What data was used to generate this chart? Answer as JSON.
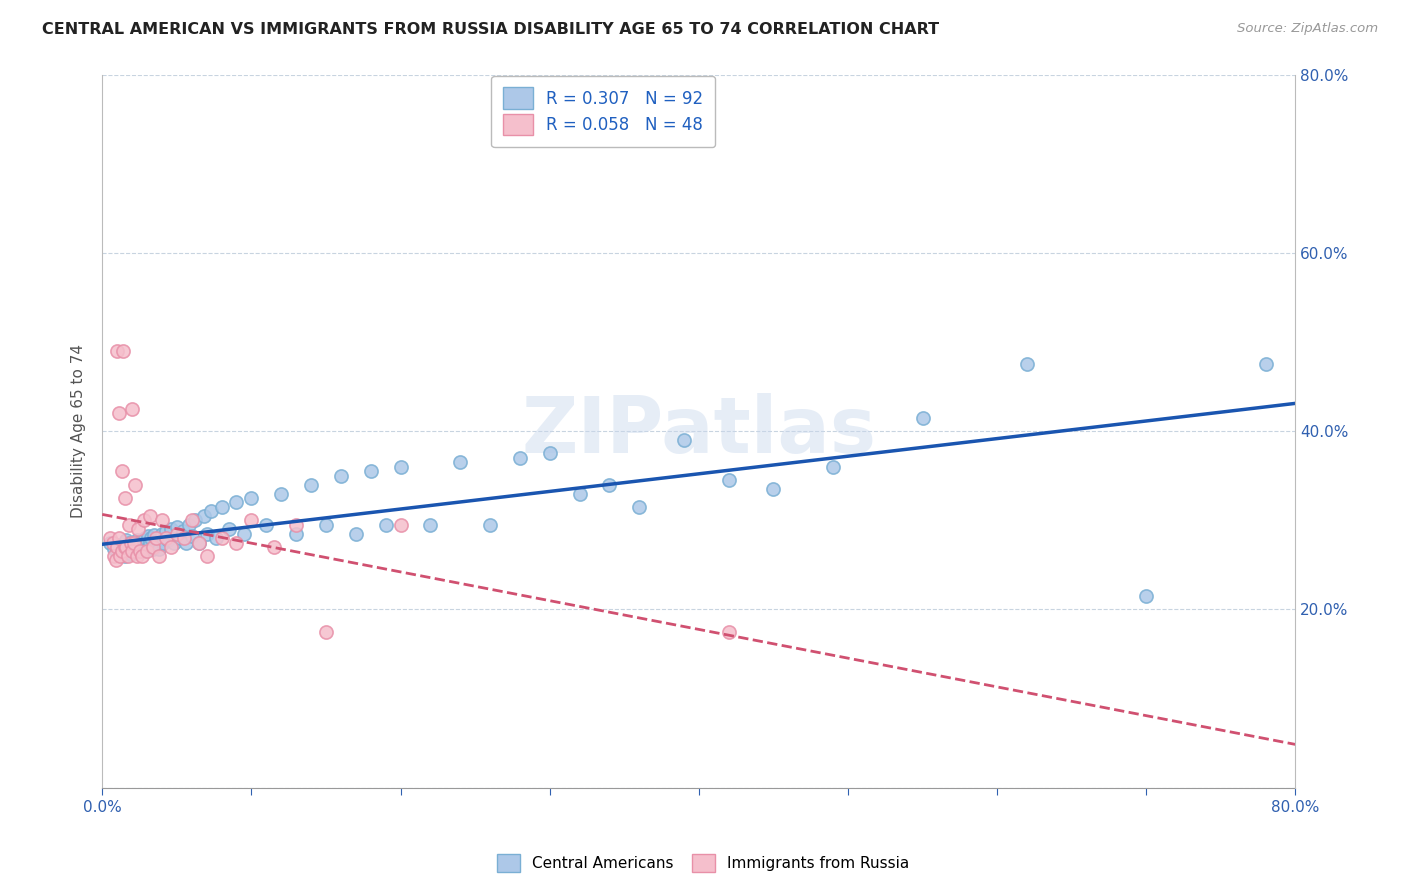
{
  "title": "CENTRAL AMERICAN VS IMMIGRANTS FROM RUSSIA DISABILITY AGE 65 TO 74 CORRELATION CHART",
  "source": "Source: ZipAtlas.com",
  "ylabel": "Disability Age 65 to 74",
  "xmin": 0.0,
  "xmax": 0.8,
  "ymin": 0.0,
  "ymax": 0.8,
  "blue_R": 0.307,
  "blue_N": 92,
  "pink_R": 0.058,
  "pink_N": 48,
  "blue_color": "#adc8e8",
  "blue_edge": "#7aafd4",
  "pink_color": "#f5bfcc",
  "pink_edge": "#e890a8",
  "blue_line_color": "#1a55b0",
  "pink_line_color": "#d05070",
  "watermark_text": "ZIPatlas",
  "legend_blue_label": "Central Americans",
  "legend_pink_label": "Immigrants from Russia",
  "blue_x": [
    0.005,
    0.008,
    0.01,
    0.01,
    0.012,
    0.013,
    0.015,
    0.015,
    0.016,
    0.017,
    0.018,
    0.018,
    0.019,
    0.019,
    0.02,
    0.02,
    0.02,
    0.021,
    0.021,
    0.022,
    0.022,
    0.023,
    0.023,
    0.024,
    0.025,
    0.025,
    0.026,
    0.027,
    0.027,
    0.028,
    0.028,
    0.029,
    0.029,
    0.03,
    0.03,
    0.031,
    0.032,
    0.033,
    0.034,
    0.035,
    0.036,
    0.037,
    0.038,
    0.04,
    0.041,
    0.043,
    0.044,
    0.046,
    0.048,
    0.05,
    0.052,
    0.054,
    0.056,
    0.058,
    0.06,
    0.062,
    0.065,
    0.068,
    0.07,
    0.073,
    0.076,
    0.08,
    0.085,
    0.09,
    0.095,
    0.1,
    0.11,
    0.12,
    0.13,
    0.14,
    0.15,
    0.16,
    0.17,
    0.18,
    0.19,
    0.2,
    0.22,
    0.24,
    0.26,
    0.28,
    0.3,
    0.32,
    0.34,
    0.36,
    0.39,
    0.42,
    0.45,
    0.49,
    0.55,
    0.62,
    0.7,
    0.78
  ],
  "blue_y": [
    0.275,
    0.268,
    0.265,
    0.272,
    0.27,
    0.268,
    0.265,
    0.26,
    0.278,
    0.272,
    0.268,
    0.275,
    0.265,
    0.262,
    0.27,
    0.268,
    0.265,
    0.275,
    0.27,
    0.272,
    0.265,
    0.278,
    0.268,
    0.275,
    0.27,
    0.265,
    0.272,
    0.278,
    0.268,
    0.275,
    0.265,
    0.28,
    0.272,
    0.278,
    0.268,
    0.282,
    0.275,
    0.28,
    0.268,
    0.283,
    0.272,
    0.278,
    0.268,
    0.285,
    0.275,
    0.288,
    0.278,
    0.29,
    0.275,
    0.292,
    0.28,
    0.288,
    0.275,
    0.295,
    0.282,
    0.3,
    0.275,
    0.305,
    0.285,
    0.31,
    0.28,
    0.315,
    0.29,
    0.32,
    0.285,
    0.325,
    0.295,
    0.33,
    0.285,
    0.34,
    0.295,
    0.35,
    0.285,
    0.355,
    0.295,
    0.36,
    0.295,
    0.365,
    0.295,
    0.37,
    0.375,
    0.33,
    0.34,
    0.315,
    0.39,
    0.345,
    0.335,
    0.36,
    0.415,
    0.475,
    0.215,
    0.475
  ],
  "pink_x": [
    0.005,
    0.007,
    0.008,
    0.009,
    0.01,
    0.01,
    0.011,
    0.011,
    0.012,
    0.013,
    0.013,
    0.014,
    0.015,
    0.015,
    0.016,
    0.017,
    0.018,
    0.019,
    0.02,
    0.02,
    0.021,
    0.022,
    0.023,
    0.024,
    0.025,
    0.027,
    0.028,
    0.03,
    0.032,
    0.034,
    0.036,
    0.038,
    0.04,
    0.043,
    0.046,
    0.05,
    0.055,
    0.06,
    0.065,
    0.07,
    0.08,
    0.09,
    0.1,
    0.115,
    0.13,
    0.15,
    0.2,
    0.42
  ],
  "pink_y": [
    0.28,
    0.275,
    0.26,
    0.255,
    0.49,
    0.27,
    0.42,
    0.28,
    0.26,
    0.355,
    0.265,
    0.49,
    0.27,
    0.325,
    0.27,
    0.26,
    0.295,
    0.275,
    0.265,
    0.425,
    0.275,
    0.34,
    0.26,
    0.29,
    0.265,
    0.26,
    0.3,
    0.265,
    0.305,
    0.27,
    0.28,
    0.26,
    0.3,
    0.28,
    0.27,
    0.285,
    0.28,
    0.3,
    0.275,
    0.26,
    0.28,
    0.275,
    0.3,
    0.27,
    0.295,
    0.175,
    0.295,
    0.175
  ]
}
